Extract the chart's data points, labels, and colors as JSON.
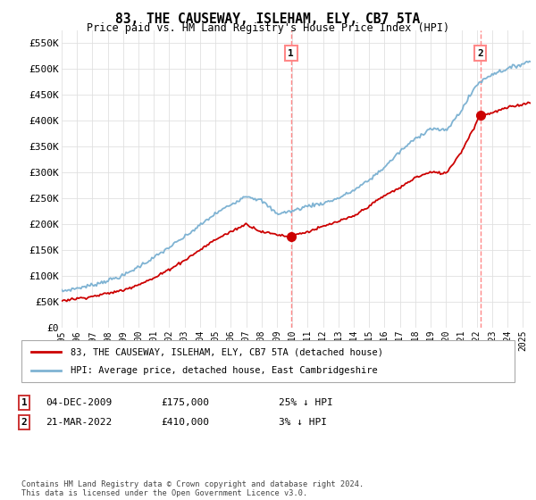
{
  "title": "83, THE CAUSEWAY, ISLEHAM, ELY, CB7 5TA",
  "subtitle": "Price paid vs. HM Land Registry's House Price Index (HPI)",
  "ylabel_ticks": [
    "£0",
    "£50K",
    "£100K",
    "£150K",
    "£200K",
    "£250K",
    "£300K",
    "£350K",
    "£400K",
    "£450K",
    "£500K",
    "£550K"
  ],
  "ytick_values": [
    0,
    50000,
    100000,
    150000,
    200000,
    250000,
    300000,
    350000,
    400000,
    450000,
    500000,
    550000
  ],
  "ylim": [
    0,
    575000
  ],
  "xlim_start": 1995.0,
  "xlim_end": 2025.5,
  "vline1_x": 2009.92,
  "vline2_x": 2022.22,
  "marker1_x": 2009.92,
  "marker1_y": 175000,
  "marker2_x": 2022.22,
  "marker2_y": 410000,
  "red_color": "#cc0000",
  "blue_color": "#7fb3d3",
  "vline_color": "#ff8888",
  "background_color": "#ffffff",
  "grid_color": "#e0e0e0",
  "legend_label_red": "83, THE CAUSEWAY, ISLEHAM, ELY, CB7 5TA (detached house)",
  "legend_label_blue": "HPI: Average price, detached house, East Cambridgeshire",
  "note1_label": "1",
  "note1_date": "04-DEC-2009",
  "note1_price": "£175,000",
  "note1_hpi": "25% ↓ HPI",
  "note2_label": "2",
  "note2_date": "21-MAR-2022",
  "note2_price": "£410,000",
  "note2_hpi": "3% ↓ HPI",
  "footer": "Contains HM Land Registry data © Crown copyright and database right 2024.\nThis data is licensed under the Open Government Licence v3.0."
}
